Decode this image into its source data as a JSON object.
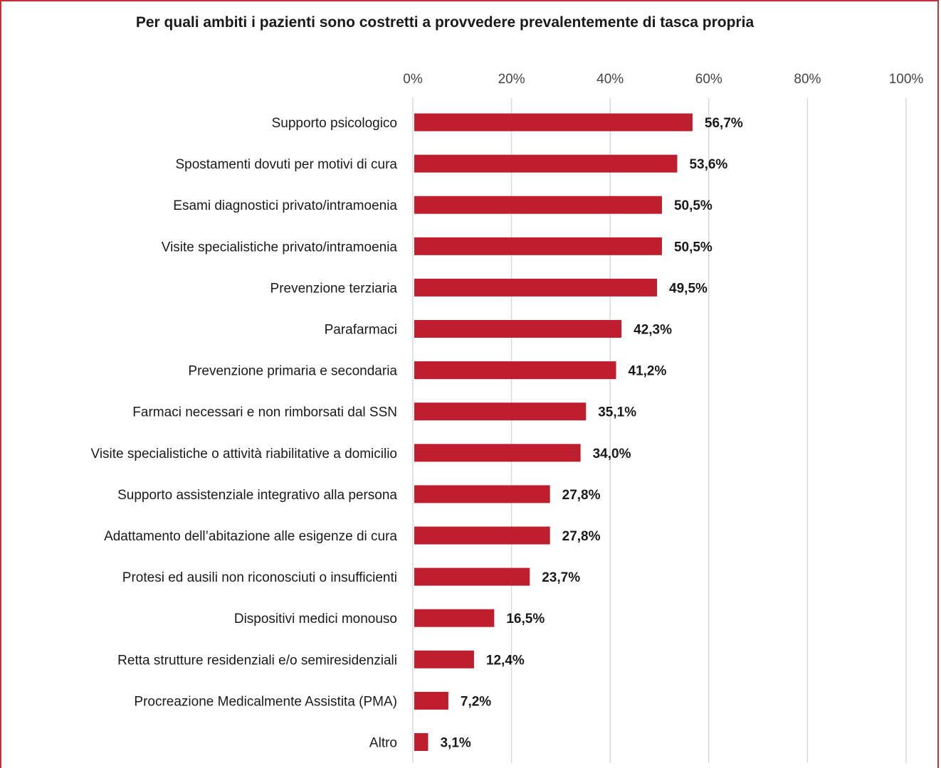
{
  "chart_data": {
    "type": "bar",
    "orientation": "horizontal",
    "title": "Per quali ambiti i pazienti sono costretti a provvedere prevalentemente di tasca propria",
    "xlim": [
      0,
      100
    ],
    "x_ticks": [
      "0%",
      "20%",
      "40%",
      "60%",
      "80%",
      "100%"
    ],
    "x_tick_values": [
      0,
      20,
      40,
      60,
      80,
      100
    ],
    "x_axis_position": "top",
    "grid": true,
    "bar_color": "#be1e2d",
    "grid_color": "#d9d9d9",
    "frame_color": "#c0333a",
    "categories": [
      "Supporto psicologico",
      "Spostamenti dovuti per motivi di cura",
      "Esami diagnostici privato/intramoenia",
      "Visite specialistiche privato/intramoenia",
      "Prevenzione terziaria",
      "Parafarmaci",
      "Prevenzione primaria e secondaria",
      "Farmaci necessari e non rimborsati dal SSN",
      "Visite specialistiche o attività riabilitative a domicilio",
      "Supporto assistenziale integrativo alla persona",
      "Adattamento dell’abitazione alle esigenze di cura",
      "Protesi ed ausili non riconosciuti o insufficienti",
      "Dispositivi medici monouso",
      "Retta strutture residenziali e/o semiresidenziali",
      "Procreazione Medicalmente Assistita (PMA)",
      "Altro"
    ],
    "values": [
      56.7,
      53.6,
      50.5,
      50.5,
      49.5,
      42.3,
      41.2,
      35.1,
      34.0,
      27.8,
      27.8,
      23.7,
      16.5,
      12.4,
      7.2,
      3.1
    ],
    "value_labels": [
      "56,7%",
      "53,6%",
      "50,5%",
      "50,5%",
      "49,5%",
      "42,3%",
      "41,2%",
      "35,1%",
      "34,0%",
      "27,8%",
      "27,8%",
      "23,7%",
      "16,5%",
      "12,4%",
      "7,2%",
      "3,1%"
    ]
  }
}
